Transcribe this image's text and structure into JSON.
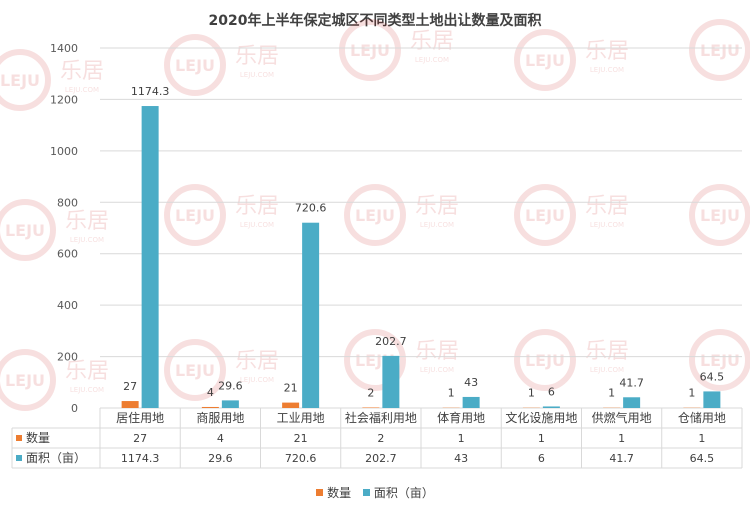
{
  "title": "2020年上半年保定城区不同类型土地出让数量及面积",
  "watermark": {
    "text": "乐居",
    "logo": "LEJU",
    "sub": "LEJU.COM"
  },
  "colors": {
    "count": "#ED7D31",
    "area": "#4BACC6",
    "grid": "#D9D9D9",
    "text": "#404040"
  },
  "chart_data": {
    "type": "bar",
    "title": "2020年上半年保定城区不同类型土地出让数量及面积",
    "categories": [
      "居住用地",
      "商服用地",
      "工业用地",
      "社会福利用地",
      "体育用地",
      "文化设施用地",
      "供燃气用地",
      "仓储用地"
    ],
    "series": [
      {
        "name": "数量",
        "values": [
          27,
          4,
          21,
          2,
          1,
          1,
          1,
          1
        ]
      },
      {
        "name": "面积（亩）",
        "values": [
          1174.3,
          29.6,
          720.6,
          202.7,
          43,
          6,
          41.7,
          64.5
        ]
      }
    ],
    "ylim": [
      0,
      1400
    ],
    "yticks": [
      0,
      200,
      400,
      600,
      800,
      1000,
      1200,
      1400
    ],
    "grid": true,
    "legend": "bottom",
    "data_table": true
  }
}
